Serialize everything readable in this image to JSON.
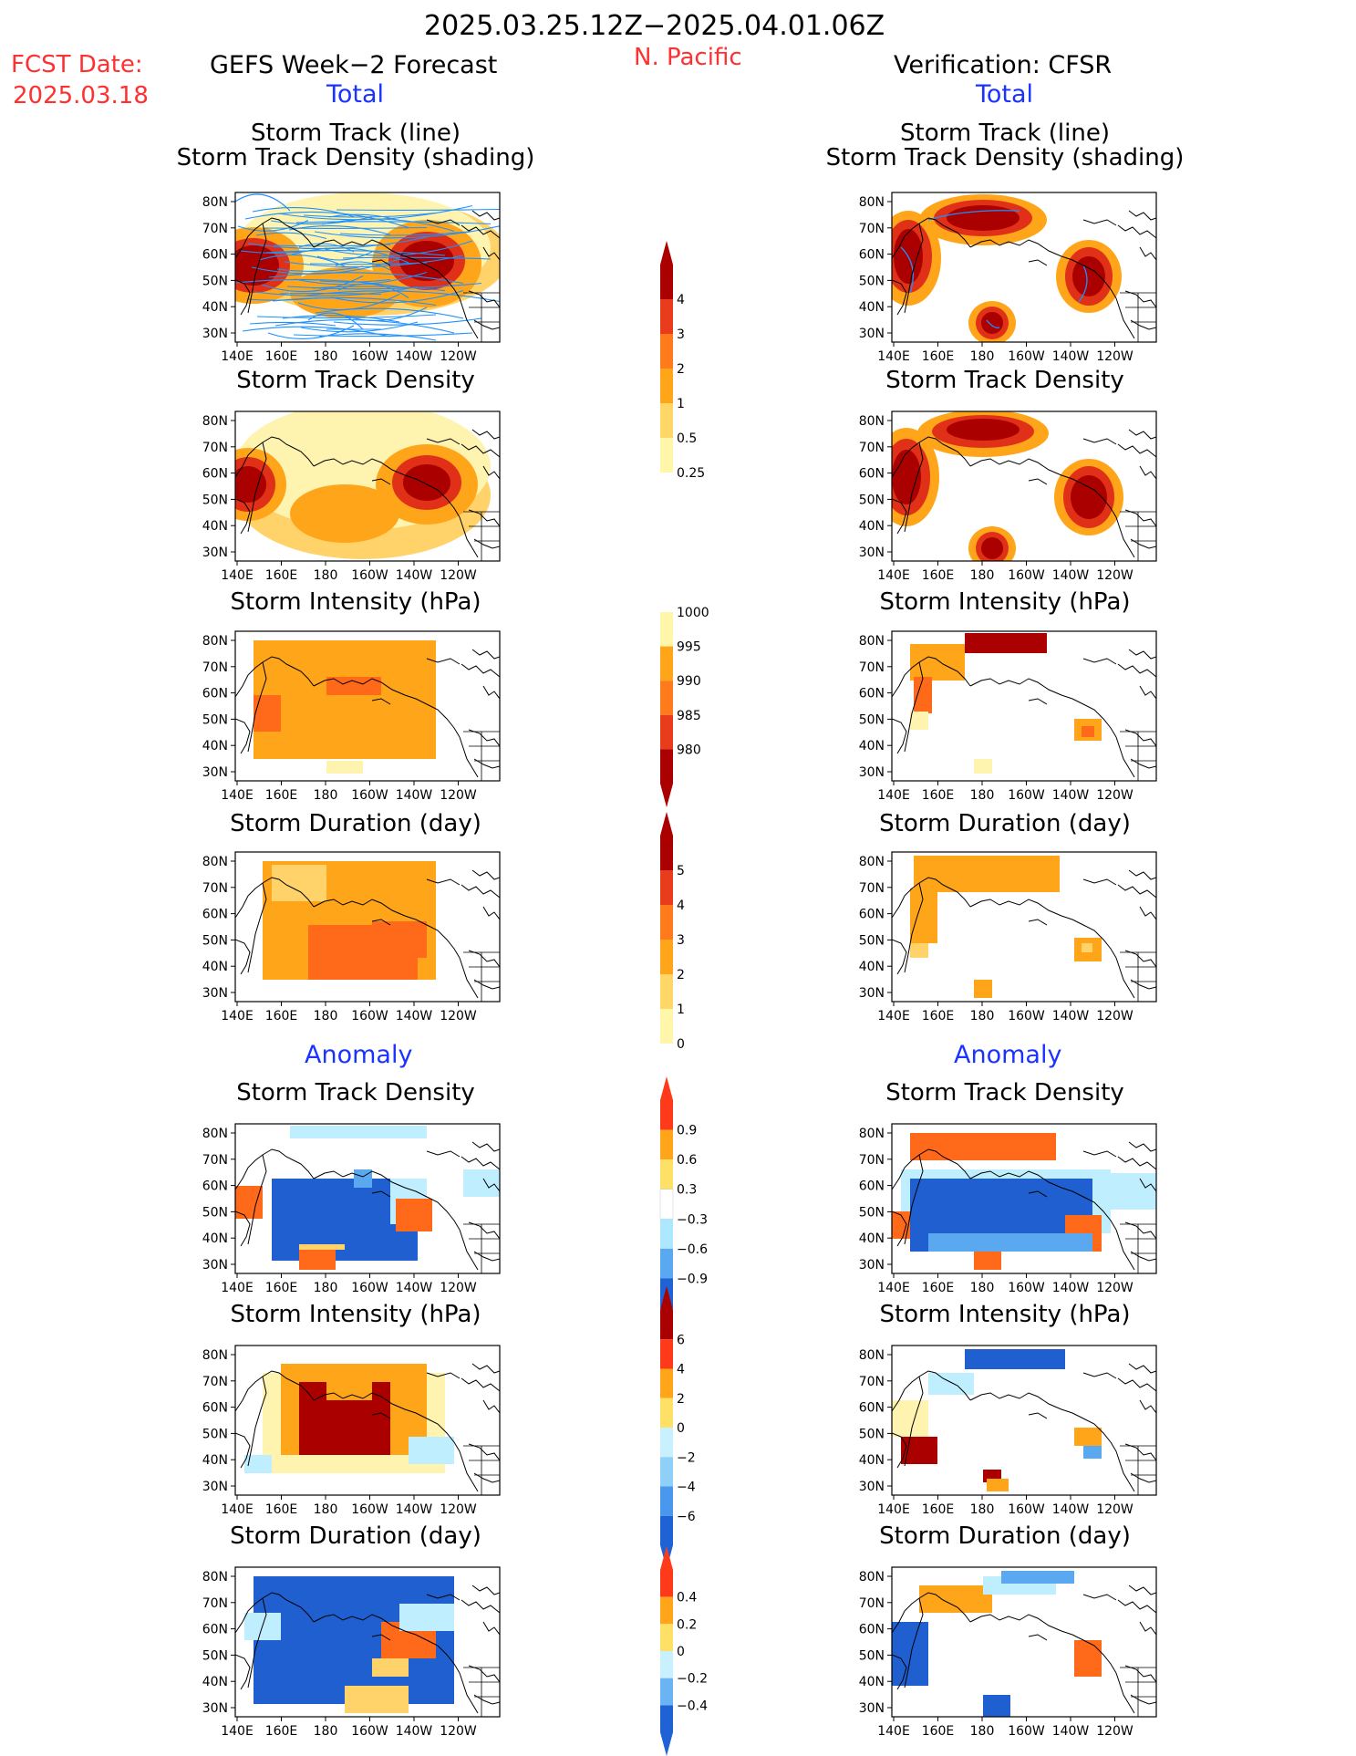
{
  "header": {
    "date_range": "2025.03.25.12Z−2025.04.01.06Z",
    "fcst_label": "FCST Date:",
    "fcst_date": "2025.03.18",
    "left_title": "GEFS Week−2 Forecast",
    "region": "N. Pacific",
    "right_title": "Verification: CFSR",
    "total_label": "Total",
    "anomaly_label": "Anomaly"
  },
  "panel_titles": {
    "track_line": "Storm Track (line)",
    "track_density_shading": "Storm Track Density (shading)",
    "track_density": "Storm Track Density",
    "intensity": "Storm Intensity (hPa)",
    "duration": "Storm Duration (day)"
  },
  "axes": {
    "lat_labels": [
      "80N",
      "70N",
      "60N",
      "50N",
      "40N",
      "30N"
    ],
    "lon_labels": [
      "140E",
      "160E",
      "180",
      "160W",
      "140W",
      "120W"
    ]
  },
  "colorbars": {
    "density_total": {
      "labels": [
        "4",
        "3",
        "2",
        "1",
        "0.5",
        "0.25"
      ],
      "colors": [
        "#aa0000",
        "#e83c1c",
        "#ff7a1a",
        "#ffa51a",
        "#ffd766",
        "#fff6aa"
      ]
    },
    "intensity_total": {
      "labels": [
        "1000",
        "995",
        "990",
        "985",
        "980"
      ],
      "colors": [
        "#fff6aa",
        "#ffa51a",
        "#ff7a1a",
        "#e83c1c",
        "#aa0000"
      ]
    },
    "duration_total": {
      "labels": [
        "5",
        "4",
        "3",
        "2",
        "1",
        "0"
      ],
      "colors": [
        "#aa0000",
        "#e83c1c",
        "#ff7a1a",
        "#ffa51a",
        "#ffd766",
        "#fff6aa"
      ]
    },
    "density_anom": {
      "labels": [
        "0.9",
        "0.6",
        "0.3",
        "−0.3",
        "−0.6",
        "−0.9"
      ],
      "colors": [
        "#ff3a1a",
        "#ffa51a",
        "#ffe066",
        "#ffffff",
        "#aee8ff",
        "#5aa8f0",
        "#1f62d6"
      ]
    },
    "intensity_anom": {
      "labels": [
        "6",
        "4",
        "2",
        "0",
        "−2",
        "−4",
        "−6"
      ],
      "colors": [
        "#aa0000",
        "#ff3a1a",
        "#ffa51a",
        "#ffe066",
        "#c8f0ff",
        "#8ed0f8",
        "#4a98ee",
        "#1f62d6"
      ]
    },
    "duration_anom": {
      "labels": [
        "0.4",
        "0.2",
        "0",
        "−0.2",
        "−0.4"
      ],
      "colors": [
        "#ff3a1a",
        "#ffa51a",
        "#ffe066",
        "#c8f0ff",
        "#6ab4f4",
        "#1f62d6"
      ]
    }
  },
  "palette": {
    "dark_red": "#aa0000",
    "red": "#e03018",
    "orange_red": "#ff6a1a",
    "orange": "#ffa51a",
    "light_orange": "#ffd26a",
    "pale_yellow": "#fff3b0",
    "light_blue": "#bfeeff",
    "mid_blue": "#5aa8f0",
    "dark_blue": "#1f5fd0",
    "track_line": "#1e90ff"
  }
}
